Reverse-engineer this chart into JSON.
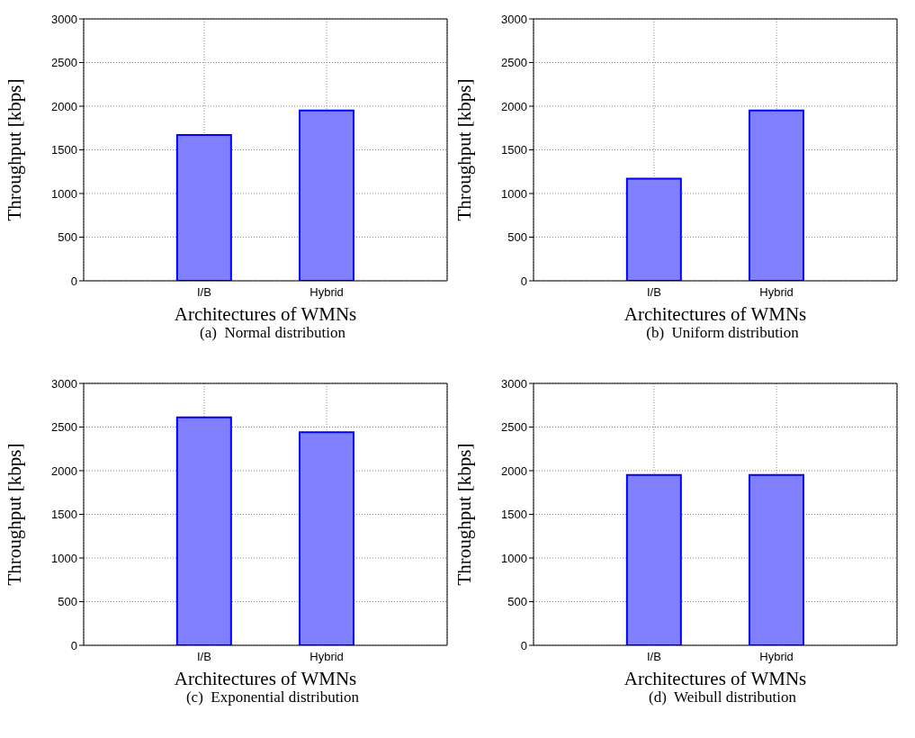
{
  "chart_data": [
    {
      "type": "bar",
      "title": "(a)  Normal distribution",
      "xlabel": "Architectures of WMNs",
      "ylabel": "Throughput [kbps]",
      "categories": [
        "I/B",
        "Hybrid"
      ],
      "values": [
        1670,
        1950
      ],
      "color": "#8080ff",
      "ylim": [
        0,
        3000
      ],
      "yticks": [
        0,
        500,
        1000,
        1500,
        2000,
        2500,
        3000
      ],
      "grid": true
    },
    {
      "type": "bar",
      "title": "(b)  Uniform distribution",
      "xlabel": "Architectures of WMNs",
      "ylabel": "Throughput [kbps]",
      "categories": [
        "I/B",
        "Hybrid"
      ],
      "values": [
        1170,
        1950
      ],
      "color": "#8080ff",
      "ylim": [
        0,
        3000
      ],
      "yticks": [
        0,
        500,
        1000,
        1500,
        2000,
        2500,
        3000
      ],
      "grid": true
    },
    {
      "type": "bar",
      "title": "(c)  Exponential distribution",
      "xlabel": "Architectures of WMNs",
      "ylabel": "Throughput [kbps]",
      "categories": [
        "I/B",
        "Hybrid"
      ],
      "values": [
        2610,
        2440
      ],
      "color": "#8080ff",
      "ylim": [
        0,
        3000
      ],
      "yticks": [
        0,
        500,
        1000,
        1500,
        2000,
        2500,
        3000
      ],
      "grid": true
    },
    {
      "type": "bar",
      "title": "(d)  Weibull distribution",
      "xlabel": "Architectures of WMNs",
      "ylabel": "Throughput [kbps]",
      "categories": [
        "I/B",
        "Hybrid"
      ],
      "values": [
        1950,
        1950
      ],
      "color": "#8080ff",
      "ylim": [
        0,
        3000
      ],
      "yticks": [
        0,
        500,
        1000,
        1500,
        2000,
        2500,
        3000
      ],
      "grid": true
    }
  ]
}
